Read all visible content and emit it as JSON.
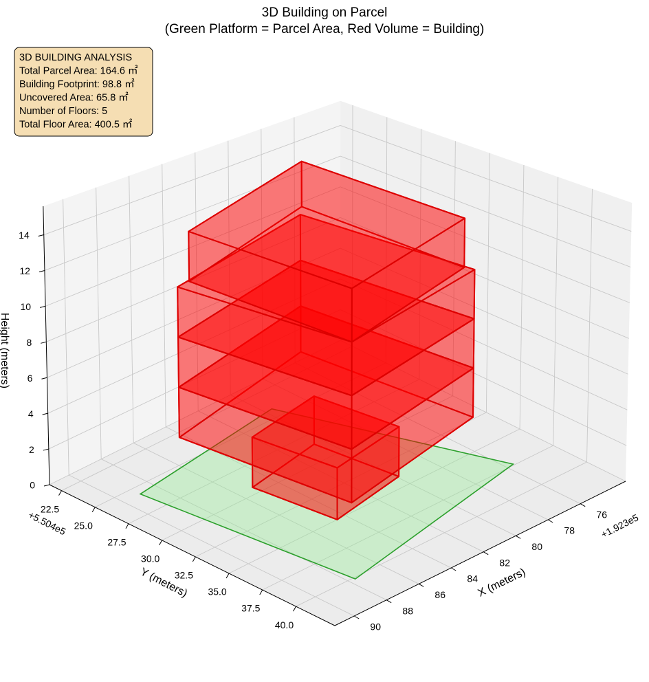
{
  "chart_data": {
    "type": "building3d",
    "title": "3D Building on Parcel",
    "subtitle": "(Green Platform = Parcel Area, Red Volume = Building)",
    "info_box": {
      "title": "3D BUILDING ANALYSIS",
      "lines": [
        "Total Parcel Area: 164.6 ㎡",
        "Building Footprint: 98.8 ㎡",
        "Uncovered Area: 65.8 ㎡",
        "Number of Floors: 5",
        "Total Floor Area: 400.5 ㎡"
      ],
      "color": "#f5deb3"
    },
    "x_label": "X (meters)",
    "y_label": "Y (meters)",
    "z_label": "Height (meters)",
    "x_offset": "+1.923e5",
    "y_offset": "+5.504e5",
    "xlim": [
      73.2,
      91.2
    ],
    "ylim": [
      21.6,
      42.9
    ],
    "zlim": [
      0,
      15.6
    ],
    "xticks": [
      76,
      78,
      80,
      82,
      84,
      86,
      88,
      90
    ],
    "yticks": [
      22.5,
      {
        "value": 25,
        "label": "25.0"
      },
      27.5,
      {
        "value": 30,
        "label": "30.0"
      },
      32.5,
      {
        "value": 35,
        "label": "35.0"
      },
      37.5,
      {
        "value": 40,
        "label": "40.0"
      }
    ],
    "zticks": [
      0,
      2,
      4,
      6,
      8,
      10,
      12,
      14
    ],
    "grid": true,
    "parcel": {
      "x": [
        88.98,
        79.6,
        75.6,
        87.65
      ],
      "y": [
        25.7,
        24.2,
        37.4,
        40.15
      ],
      "color": "lightgreen",
      "edge_color": "#2ca02c",
      "alpha": 0.35
    },
    "building": {
      "color": "red",
      "edge_color": "#dd0000",
      "alpha": 0.3,
      "floors": [
        {
          "x": [
            85.1,
            84.5,
            79.9,
            80.5
          ],
          "y": [
            29.4,
            35.0,
            34.05,
            28.45
          ],
          "z": [
            0,
            2.8
          ]
        },
        {
          "x": [
            87.35,
            86.35,
            77.0,
            78.0
          ],
          "y": [
            26.7,
            38.3,
            36.05,
            24.45
          ],
          "z": [
            2.8,
            5.6
          ]
        },
        {
          "x": [
            87.35,
            86.35,
            77.0,
            78.0
          ],
          "y": [
            26.7,
            38.3,
            36.05,
            24.45
          ],
          "z": [
            5.6,
            8.4
          ]
        },
        {
          "x": [
            87.35,
            86.35,
            77.0,
            78.0
          ],
          "y": [
            26.7,
            38.3,
            36.05,
            24.45
          ],
          "z": [
            8.4,
            11.2
          ]
        },
        {
          "x": [
            86.56,
            86.35,
            77.14,
            77.35
          ],
          "y": [
            26.6,
            38.3,
            35.46,
            23.76
          ],
          "z": [
            11.2,
            14.0
          ]
        }
      ]
    }
  }
}
